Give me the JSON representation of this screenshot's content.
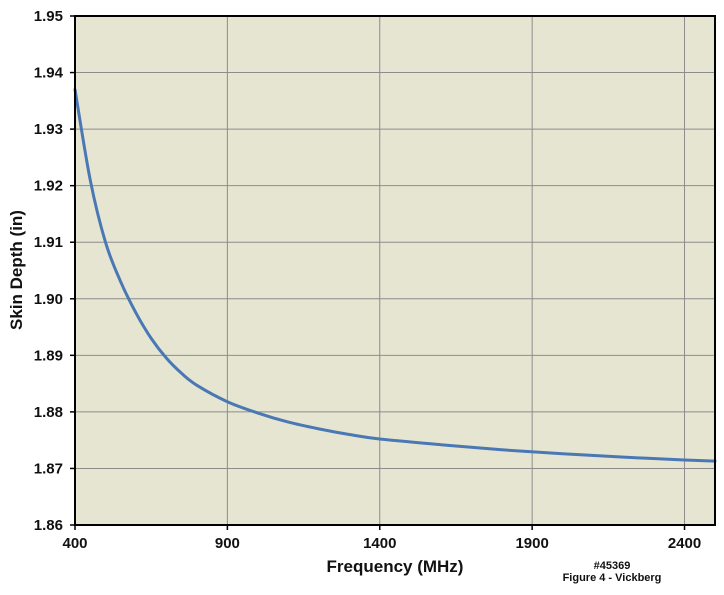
{
  "chart_data": {
    "type": "line",
    "title": "",
    "xlabel": "Frequency (MHz)",
    "ylabel": "Skin Depth (in)",
    "xlim": [
      400,
      2500
    ],
    "ylim": [
      1.86,
      1.95
    ],
    "x_ticks": [
      400,
      900,
      1400,
      1900,
      2400
    ],
    "x_tick_labels": [
      "400",
      "900",
      "1400",
      "1900",
      "2400"
    ],
    "y_ticks": [
      1.86,
      1.87,
      1.88,
      1.89,
      1.9,
      1.91,
      1.92,
      1.93,
      1.94,
      1.95
    ],
    "y_tick_labels": [
      "1.86",
      "1.87",
      "1.88",
      "1.89",
      "1.90",
      "1.91",
      "1.92",
      "1.93",
      "1.94",
      "1.95"
    ],
    "grid": true,
    "legend": "none",
    "series": [
      {
        "color": "#4a78b4",
        "x": [
          400,
          450,
          500,
          550,
          600,
          650,
          700,
          750,
          800,
          900,
          1000,
          1100,
          1200,
          1300,
          1400,
          1600,
          1800,
          2000,
          2200,
          2400,
          2500
        ],
        "y": [
          1.937,
          1.921,
          1.91,
          1.903,
          1.8975,
          1.893,
          1.8895,
          1.8868,
          1.8847,
          1.8818,
          1.8798,
          1.8782,
          1.877,
          1.876,
          1.8752,
          1.8742,
          1.8733,
          1.8726,
          1.872,
          1.8715,
          1.8713
        ]
      }
    ],
    "plot_background": "#e5e5d2",
    "grid_color": "#8c8c8c"
  },
  "footnote": {
    "line1": "#45369",
    "line2": "Figure 4 - Vickberg"
  }
}
